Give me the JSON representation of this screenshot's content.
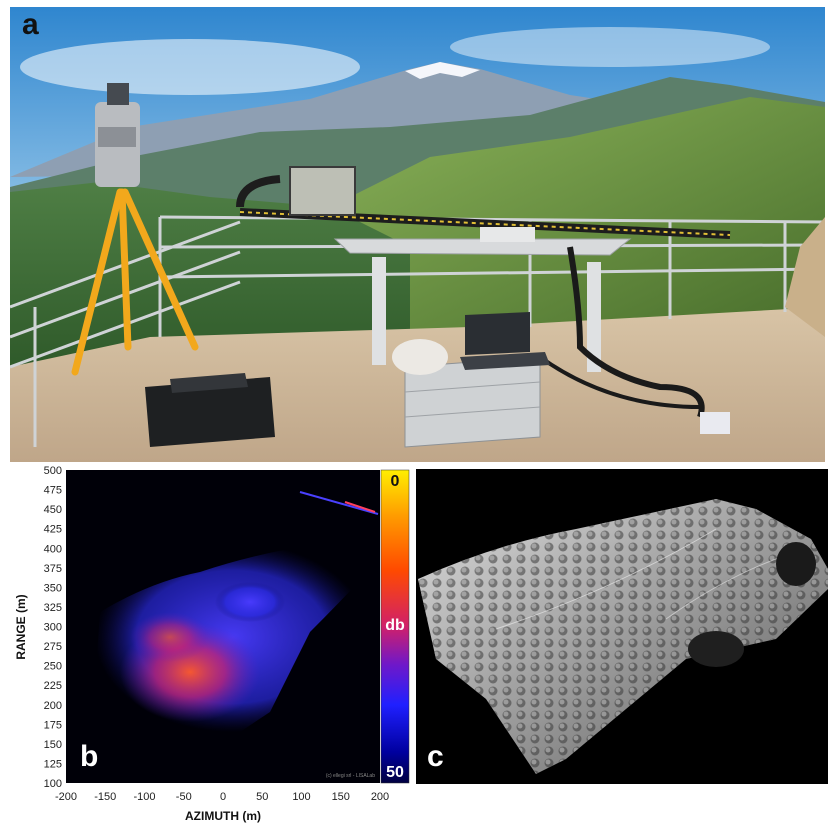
{
  "panels": {
    "a": "a",
    "b": "b",
    "c": "c"
  },
  "sar": {
    "ylabel": "RANGE (m)",
    "xlabel": "AZIMUTH (m)",
    "y_ticks": [
      "500",
      "475",
      "450",
      "425",
      "400",
      "375",
      "350",
      "325",
      "300",
      "275",
      "250",
      "225",
      "200",
      "175",
      "150",
      "125",
      "100"
    ],
    "x_ticks": [
      "-200",
      "-150",
      "-100",
      "-50",
      "0",
      "50",
      "100",
      "150",
      "200"
    ],
    "colorbar": {
      "top": "0",
      "mid": "db",
      "bottom": "50",
      "colors": [
        "#ffee00",
        "#ff9a00",
        "#ff4a00",
        "#d0206a",
        "#7018c8",
        "#2020ff",
        "#0000a0",
        "#000040"
      ]
    },
    "watermark": "(c) ellegi srl - LISALab"
  }
}
